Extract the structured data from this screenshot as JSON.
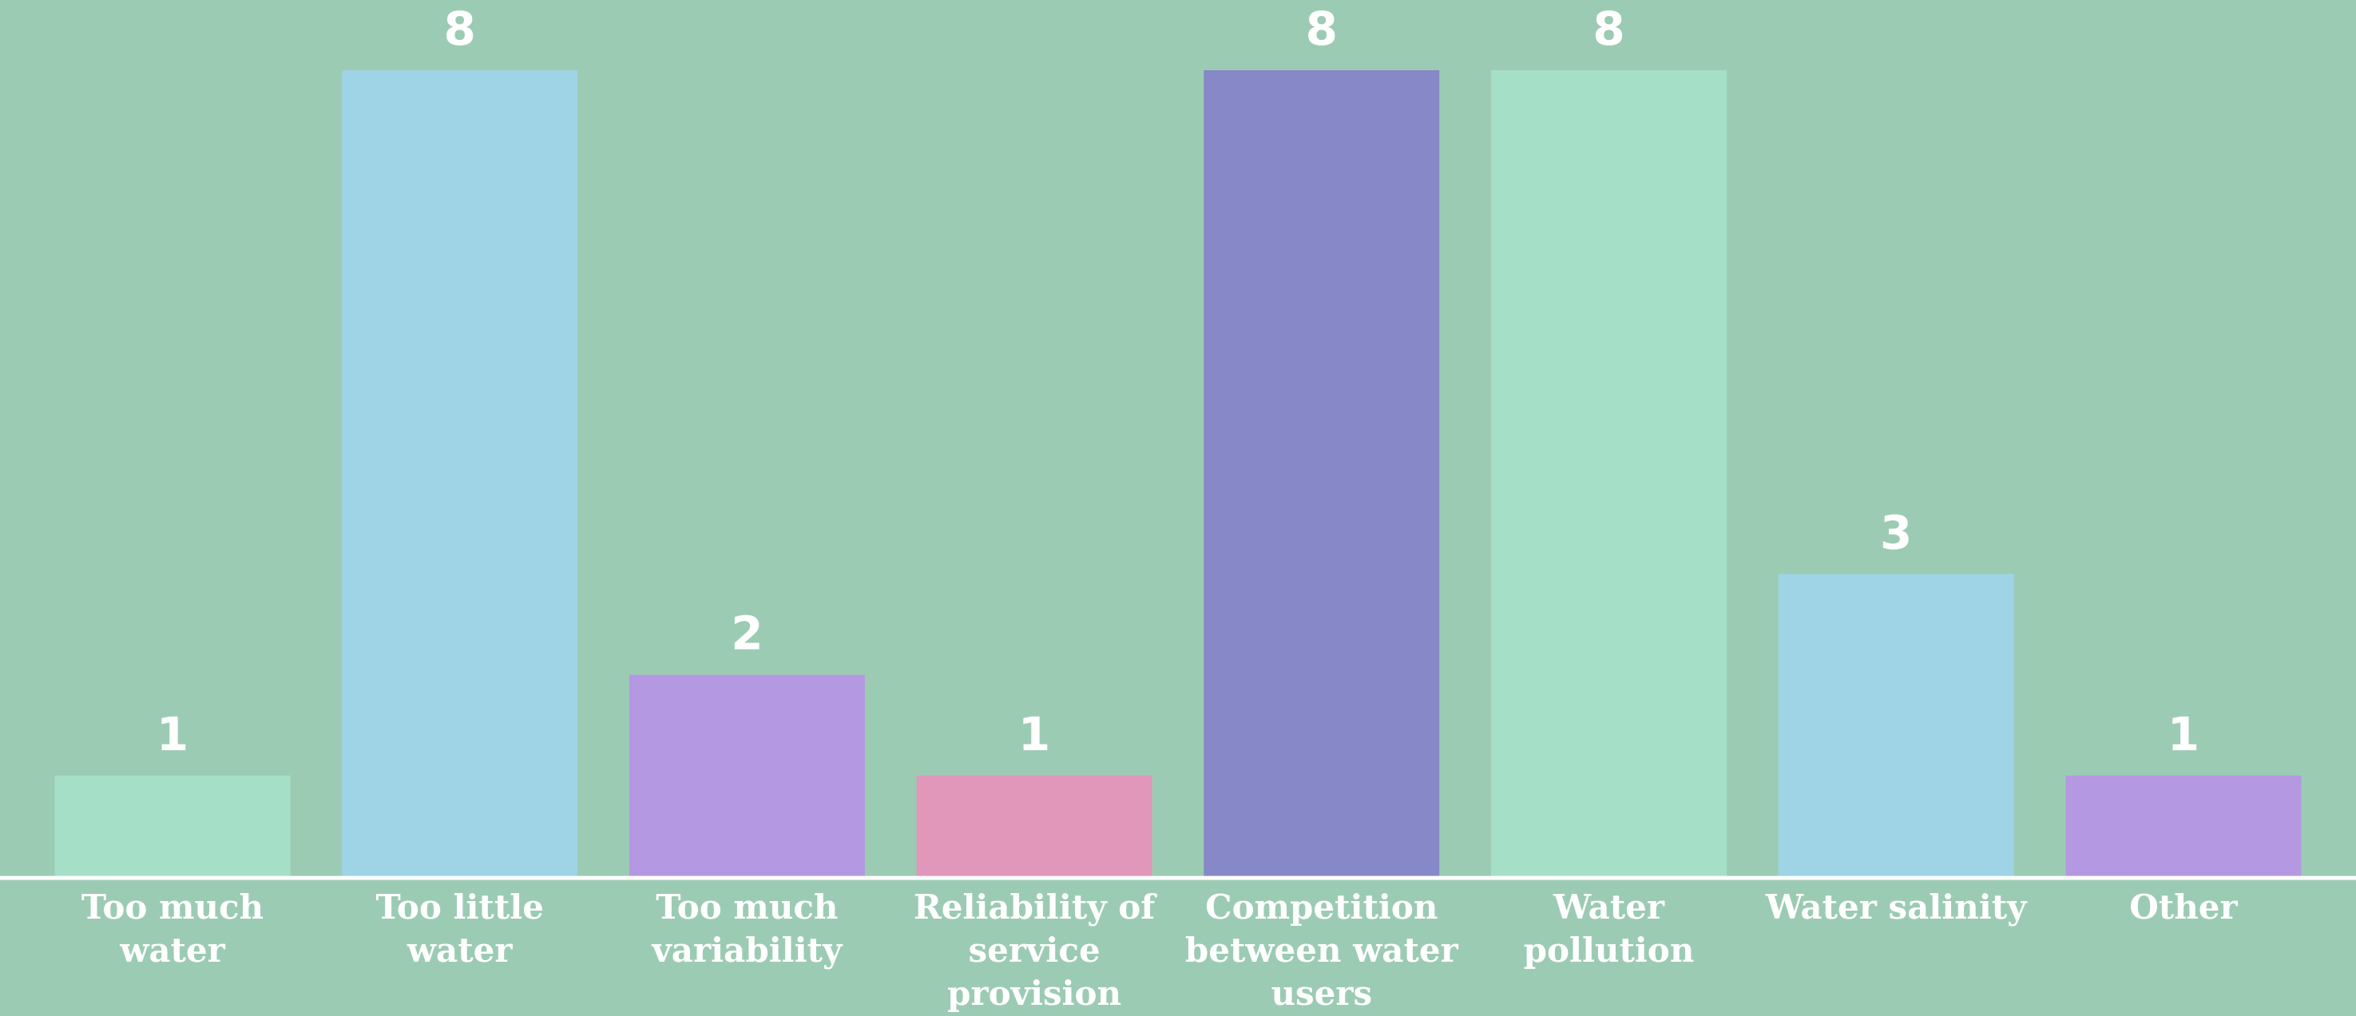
{
  "chart_data": {
    "type": "bar",
    "categories": [
      "Too much water",
      "Too little water",
      "Too much variability",
      "Reliability of service provision",
      "Competition between water users",
      "Water pollution",
      "Water salinity",
      "Other"
    ],
    "values": [
      1,
      8,
      2,
      1,
      8,
      8,
      3,
      1
    ],
    "colors": [
      "#a6dfc8",
      "#9fd3e6",
      "#b498e2",
      "#e097b9",
      "#8688c8",
      "#a6dfc8",
      "#9fd3e6",
      "#b498e2"
    ],
    "ylim": [
      0,
      8
    ]
  }
}
